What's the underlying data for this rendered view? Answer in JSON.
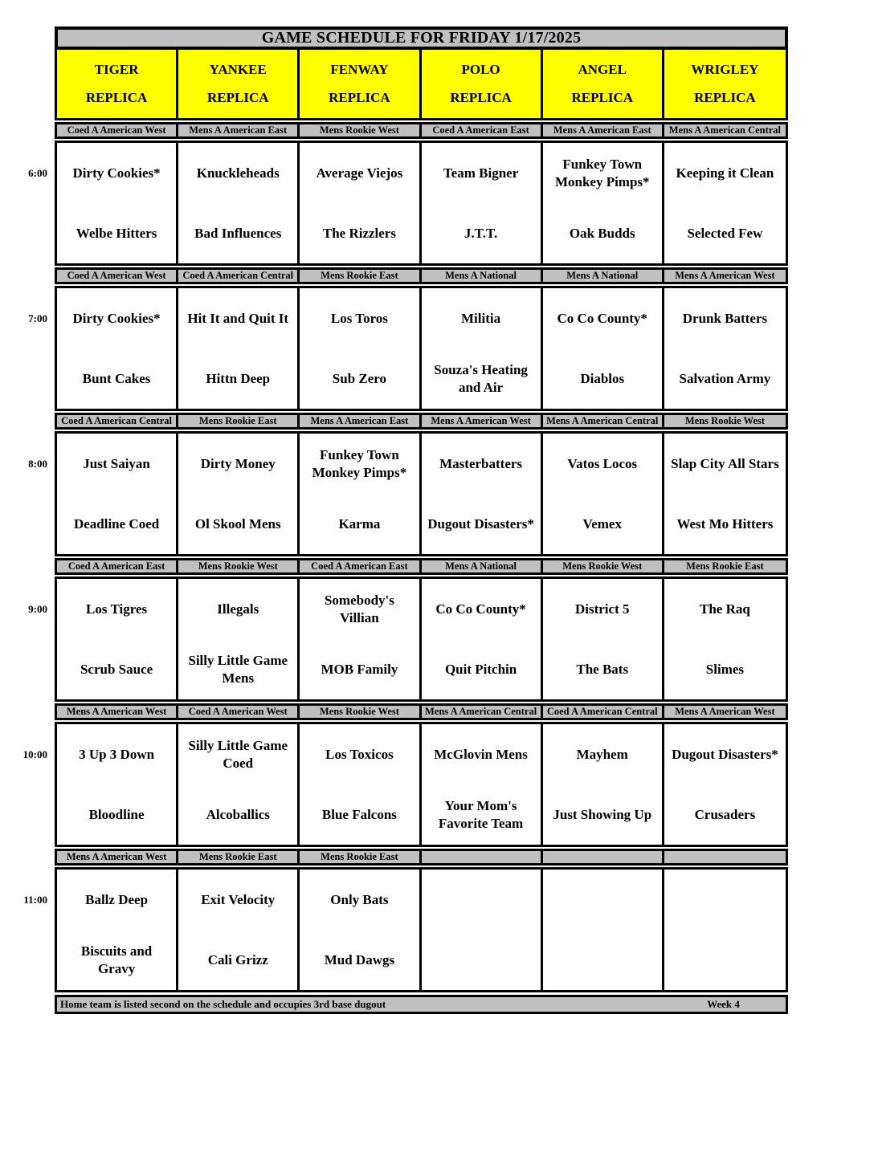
{
  "title": "GAME SCHEDULE FOR FRIDAY 1/17/2025",
  "colors": {
    "field_header_bg": "#FFFF00",
    "bar_bg": "#C0C0C0",
    "border": "#000000"
  },
  "fields": [
    {
      "name": "TIGER",
      "type": "REPLICA"
    },
    {
      "name": "YANKEE",
      "type": "REPLICA"
    },
    {
      "name": "FENWAY",
      "type": "REPLICA"
    },
    {
      "name": "POLO",
      "type": "REPLICA"
    },
    {
      "name": "ANGEL",
      "type": "REPLICA"
    },
    {
      "name": "WRIGLEY",
      "type": "REPLICA"
    }
  ],
  "slots": [
    {
      "time": "6:00",
      "games": [
        {
          "division": "Coed A American West",
          "away": "Dirty Cookies*",
          "home": "Welbe Hitters"
        },
        {
          "division": "Mens A American East",
          "away": "Knuckleheads",
          "home": "Bad Influences"
        },
        {
          "division": "Mens Rookie West",
          "away": "Average Viejos",
          "home": "The Rizzlers"
        },
        {
          "division": "Coed A American East",
          "away": "Team Bigner",
          "home": "J.T.T."
        },
        {
          "division": "Mens A American East",
          "away": "Funkey Town Monkey Pimps*",
          "home": "Oak Budds"
        },
        {
          "division": "Mens A American Central",
          "away": "Keeping it Clean",
          "home": "Selected Few"
        }
      ]
    },
    {
      "time": "7:00",
      "games": [
        {
          "division": "Coed A American West",
          "away": "Dirty Cookies*",
          "home": "Bunt Cakes"
        },
        {
          "division": "Coed A American Central",
          "away": "Hit It and Quit It",
          "home": "Hittn Deep"
        },
        {
          "division": "Mens Rookie East",
          "away": "Los Toros",
          "home": "Sub Zero"
        },
        {
          "division": "Mens A National",
          "away": "Militia",
          "home": "Souza's Heating and Air"
        },
        {
          "division": "Mens A National",
          "away": "Co Co County*",
          "home": "Diablos"
        },
        {
          "division": "Mens A American West",
          "away": "Drunk Batters",
          "home": "Salvation Army"
        }
      ]
    },
    {
      "time": "8:00",
      "games": [
        {
          "division": "Coed A American Central",
          "away": "Just Saiyan",
          "home": "Deadline Coed"
        },
        {
          "division": "Mens Rookie East",
          "away": "Dirty Money",
          "home": "Ol Skool Mens"
        },
        {
          "division": "Mens A American East",
          "away": "Funkey Town Monkey Pimps*",
          "home": "Karma"
        },
        {
          "division": "Mens A American West",
          "away": "Masterbatters",
          "home": "Dugout Disasters*"
        },
        {
          "division": "Mens A American Central",
          "away": "Vatos Locos",
          "home": "Vemex"
        },
        {
          "division": "Mens Rookie West",
          "away": "Slap City All Stars",
          "home": "West Mo Hitters"
        }
      ]
    },
    {
      "time": "9:00",
      "games": [
        {
          "division": "Coed A American East",
          "away": "Los Tigres",
          "home": "Scrub Sauce"
        },
        {
          "division": "Mens Rookie West",
          "away": "Illegals",
          "home": "Silly Little Game Mens"
        },
        {
          "division": "Coed A American East",
          "away": "Somebody's Villian",
          "home": "MOB Family"
        },
        {
          "division": "Mens A National",
          "away": "Co Co County*",
          "home": "Quit Pitchin"
        },
        {
          "division": "Mens Rookie West",
          "away": "District 5",
          "home": "The Bats"
        },
        {
          "division": "Mens Rookie East",
          "away": "The Raq",
          "home": "Slimes"
        }
      ]
    },
    {
      "time": "10:00",
      "games": [
        {
          "division": "Mens A American West",
          "away": "3 Up 3 Down",
          "home": "Bloodline"
        },
        {
          "division": "Coed A American West",
          "away": "Silly Little Game Coed",
          "home": "Alcoballics"
        },
        {
          "division": "Mens Rookie West",
          "away": "Los Toxicos",
          "home": "Blue Falcons"
        },
        {
          "division": "Mens A American Central",
          "away": "McGlovin Mens",
          "home": "Your Mom's Favorite Team"
        },
        {
          "division": "Coed A American Central",
          "away": "Mayhem",
          "home": "Just Showing Up"
        },
        {
          "division": "Mens A American West",
          "away": "Dugout Disasters*",
          "home": "Crusaders"
        }
      ]
    },
    {
      "time": "11:00",
      "games": [
        {
          "division": "Mens A American West",
          "away": "Ballz Deep",
          "home": "Biscuits and Gravy"
        },
        {
          "division": "Mens Rookie East",
          "away": "Exit Velocity",
          "home": "Cali Grizz"
        },
        {
          "division": "Mens Rookie East",
          "away": "Only Bats",
          "home": "Mud Dawgs"
        },
        {
          "division": "",
          "away": "",
          "home": ""
        },
        {
          "division": "",
          "away": "",
          "home": ""
        },
        {
          "division": "",
          "away": "",
          "home": ""
        }
      ]
    }
  ],
  "footer": {
    "note": "Home team is listed second on the schedule and occupies 3rd base dugout",
    "week": "Week 4"
  }
}
